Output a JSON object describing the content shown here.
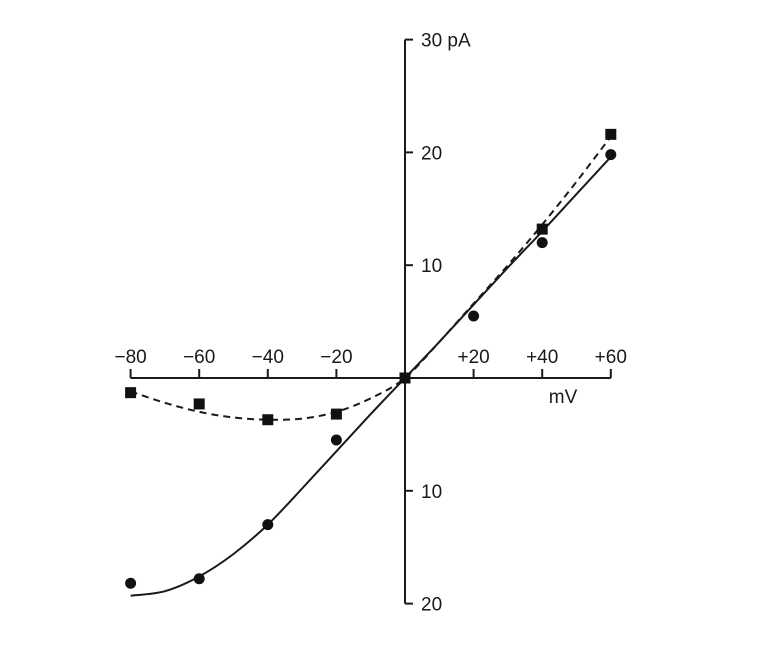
{
  "chart_data": {
    "type": "line",
    "title": "",
    "x_unit_label": "mV",
    "y_unit_label": "30 pA",
    "xlim": [
      -80,
      60
    ],
    "ylim": [
      -20,
      30
    ],
    "x_ticks": [
      {
        "value": -80,
        "label": "−80"
      },
      {
        "value": -60,
        "label": "−60"
      },
      {
        "value": -40,
        "label": "−40"
      },
      {
        "value": -20,
        "label": "−20"
      },
      {
        "value": 20,
        "label": "+20"
      },
      {
        "value": 40,
        "label": "+40"
      },
      {
        "value": 60,
        "label": "+60"
      }
    ],
    "y_ticks": [
      {
        "value": 30,
        "label": "30 pA"
      },
      {
        "value": 20,
        "label": "20"
      },
      {
        "value": 10,
        "label": "10"
      },
      {
        "value": -10,
        "label": "10"
      },
      {
        "value": -20,
        "label": "20"
      }
    ],
    "series": [
      {
        "name": "circles",
        "marker": "circle",
        "line_style": "solid",
        "points": [
          {
            "x": -80,
            "y": -18.2
          },
          {
            "x": -60,
            "y": -17.8
          },
          {
            "x": -40,
            "y": -13.0
          },
          {
            "x": -20,
            "y": -5.5
          },
          {
            "x": 0,
            "y": 0.0
          },
          {
            "x": 20,
            "y": 5.5
          },
          {
            "x": 40,
            "y": 12.0
          },
          {
            "x": 60,
            "y": 19.8
          }
        ],
        "curve": [
          {
            "x": -80,
            "y": -19.3
          },
          {
            "x": -70,
            "y": -18.9
          },
          {
            "x": -60,
            "y": -17.6
          },
          {
            "x": -50,
            "y": -15.6
          },
          {
            "x": -40,
            "y": -13.0
          },
          {
            "x": -30,
            "y": -9.8
          },
          {
            "x": -20,
            "y": -6.5
          },
          {
            "x": -10,
            "y": -3.2
          },
          {
            "x": 0,
            "y": 0.0
          },
          {
            "x": 10,
            "y": 3.2
          },
          {
            "x": 20,
            "y": 6.5
          },
          {
            "x": 30,
            "y": 9.8
          },
          {
            "x": 40,
            "y": 13.0
          },
          {
            "x": 50,
            "y": 16.3
          },
          {
            "x": 60,
            "y": 19.6
          }
        ]
      },
      {
        "name": "squares",
        "marker": "square",
        "line_style": "dashed",
        "points": [
          {
            "x": -80,
            "y": -1.3
          },
          {
            "x": -60,
            "y": -2.3
          },
          {
            "x": -40,
            "y": -3.7
          },
          {
            "x": -20,
            "y": -3.2
          },
          {
            "x": 0,
            "y": 0.0
          },
          {
            "x": 40,
            "y": 13.2
          },
          {
            "x": 60,
            "y": 21.6
          }
        ],
        "curve": [
          {
            "x": -80,
            "y": -1.2
          },
          {
            "x": -70,
            "y": -2.2
          },
          {
            "x": -60,
            "y": -3.0
          },
          {
            "x": -50,
            "y": -3.5
          },
          {
            "x": -40,
            "y": -3.7
          },
          {
            "x": -30,
            "y": -3.6
          },
          {
            "x": -20,
            "y": -3.0
          },
          {
            "x": -10,
            "y": -1.8
          },
          {
            "x": 0,
            "y": 0.0
          },
          {
            "x": 10,
            "y": 3.2
          },
          {
            "x": 20,
            "y": 6.6
          },
          {
            "x": 30,
            "y": 10.0
          },
          {
            "x": 40,
            "y": 13.6
          },
          {
            "x": 50,
            "y": 17.4
          },
          {
            "x": 60,
            "y": 21.4
          }
        ]
      }
    ]
  }
}
